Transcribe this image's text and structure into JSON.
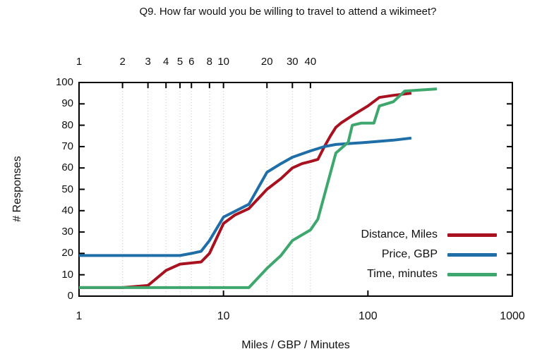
{
  "chart_data": {
    "type": "line",
    "title": "Q9. How far would you be willing to travel to attend a wikimeet?",
    "xlabel": "Miles / GBP / Minutes",
    "ylabel": "# Responses",
    "x_scale": "log",
    "x_range": [
      1,
      1000
    ],
    "y_range": [
      0,
      100
    ],
    "bottom_axis_ticks": [
      "1",
      "10",
      "100",
      "1000"
    ],
    "top_axis_ticks": [
      "1",
      "2",
      "3",
      "4",
      "5",
      "6",
      "8",
      "10",
      "20",
      "30",
      "40"
    ],
    "y_axis_ticks": [
      "0",
      "10",
      "20",
      "30",
      "40",
      "50",
      "60",
      "70",
      "80",
      "90",
      "100"
    ],
    "grid": {
      "vertical_dotted_at": [
        2,
        3,
        4,
        5,
        6,
        8,
        10,
        20,
        30,
        40
      ],
      "horizontal": false,
      "color": "#c4c4c4"
    },
    "legend_position": "inside-bottom-right",
    "series": [
      {
        "name": "Distance, Miles",
        "color": "#a81220",
        "points": [
          [
            1,
            4
          ],
          [
            2,
            4
          ],
          [
            3,
            5
          ],
          [
            4,
            12
          ],
          [
            5,
            15
          ],
          [
            7,
            16
          ],
          [
            8,
            20
          ],
          [
            10,
            34
          ],
          [
            12,
            38
          ],
          [
            15,
            41
          ],
          [
            20,
            50
          ],
          [
            25,
            55
          ],
          [
            30,
            60
          ],
          [
            35,
            62
          ],
          [
            40,
            63
          ],
          [
            45,
            64
          ],
          [
            50,
            70
          ],
          [
            55,
            75
          ],
          [
            60,
            79
          ],
          [
            65,
            81
          ],
          [
            80,
            85
          ],
          [
            100,
            89
          ],
          [
            120,
            93
          ],
          [
            150,
            94
          ],
          [
            200,
            95
          ]
        ]
      },
      {
        "name": "Price, GBP",
        "color": "#1f6ea8",
        "points": [
          [
            1,
            19
          ],
          [
            5,
            19
          ],
          [
            6,
            20
          ],
          [
            7,
            21
          ],
          [
            8,
            26
          ],
          [
            10,
            37
          ],
          [
            15,
            43
          ],
          [
            20,
            58
          ],
          [
            25,
            62
          ],
          [
            30,
            65
          ],
          [
            40,
            68
          ],
          [
            50,
            70
          ],
          [
            60,
            71
          ],
          [
            100,
            72
          ],
          [
            150,
            73
          ],
          [
            200,
            74
          ]
        ]
      },
      {
        "name": "Time, minutes",
        "color": "#3ea76e",
        "points": [
          [
            1,
            4
          ],
          [
            15,
            4
          ],
          [
            20,
            13
          ],
          [
            25,
            19
          ],
          [
            30,
            26
          ],
          [
            40,
            31
          ],
          [
            45,
            36
          ],
          [
            60,
            67
          ],
          [
            65,
            69
          ],
          [
            73,
            72
          ],
          [
            78,
            80
          ],
          [
            90,
            81
          ],
          [
            110,
            81
          ],
          [
            120,
            89
          ],
          [
            150,
            91
          ],
          [
            180,
            96
          ],
          [
            300,
            97
          ]
        ]
      }
    ],
    "axis_color": "#000000"
  }
}
